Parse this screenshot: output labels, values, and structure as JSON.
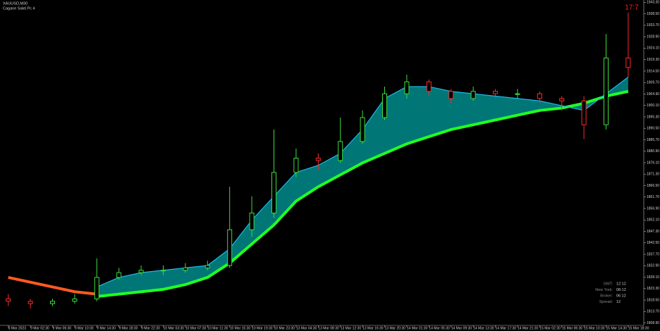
{
  "chart_data": {
    "type": "candlestick",
    "title": "XAUUSD,M30",
    "subtitle": "Cagane Sakti Pc 4",
    "clock": "17:7",
    "categories": [
      "8 Mar 2023",
      "9 Mar 02:30",
      "9 Mar 06:30",
      "9 Mar 10:30",
      "9 Mar 14:30",
      "9 Mar 18:30",
      "9 Mar 22:30",
      "10 Mar 03:30",
      "10 Mar 07:30",
      "10 Mar 11:30",
      "10 Mar 15:30",
      "10 Mar 19:30",
      "10 Mar 23:30",
      "13 Mar 04:30",
      "13 Mar 08:30",
      "13 Mar 12:30",
      "13 Mar 16:30",
      "13 Mar 20:30",
      "14 Mar 01:30",
      "14 Mar 05:30",
      "14 Mar 09:30",
      "14 Mar 13:30",
      "14 Mar 17:30",
      "14 Mar 21:30",
      "15 Mar 02:30",
      "15 Mar 06:30",
      "15 Mar 10:30",
      "15 Mar 14:30",
      "15 Mar 18:30"
    ],
    "open": [
      1819,
      1818,
      1817,
      1818,
      1819,
      1828,
      1830,
      1831,
      1831,
      1832,
      1833,
      1848,
      1855,
      1872,
      1878,
      1877,
      1885,
      1895,
      1905,
      1910,
      1906,
      1903,
      1906,
      1905,
      1905,
      1903,
      1902,
      1892,
      1920
    ],
    "high": [
      1821,
      1819,
      1819,
      1821,
      1836,
      1832,
      1833,
      1833,
      1834,
      1835,
      1866,
      1862,
      1890,
      1882,
      1880,
      1895,
      1898,
      1908,
      1913,
      1911,
      1907,
      1908,
      1907,
      1907,
      1906,
      1904,
      1904,
      1930,
      1939
    ],
    "low": [
      1816,
      1815,
      1816,
      1817,
      1818,
      1827,
      1829,
      1829,
      1830,
      1831,
      1832,
      1845,
      1853,
      1870,
      1873,
      1876,
      1884,
      1894,
      1903,
      1904,
      1901,
      1902,
      1903,
      1903,
      1901,
      1898,
      1886,
      1890,
      1912
    ],
    "close": [
      1818,
      1817,
      1818,
      1819,
      1828,
      1830,
      1831,
      1831,
      1832,
      1833,
      1848,
      1855,
      1872,
      1878,
      1877,
      1885,
      1895,
      1905,
      1910,
      1906,
      1903,
      1906,
      1905,
      1905,
      1903,
      1902,
      1892,
      1920,
      1916
    ],
    "up_color": "#3ddc3d",
    "down_color": "#ff2a2a",
    "fill_color": "#008b8b",
    "overlays": [
      {
        "color": "#22ff22",
        "values": [
          null,
          null,
          null,
          null,
          1820,
          1821,
          1822,
          1823,
          1825,
          1828,
          1834,
          1842,
          1850,
          1860,
          1866,
          1871,
          1876,
          1880,
          1884,
          1887,
          1890,
          1892,
          1894,
          1896,
          1898,
          1899,
          1901,
          1904,
          1906
        ]
      },
      {
        "color": "#1fb8e8",
        "values": [
          null,
          null,
          null,
          null,
          1824,
          1828,
          1830,
          1831,
          1832,
          1833,
          1840,
          1852,
          1862,
          1872,
          1875,
          1880,
          1890,
          1903,
          1908,
          1908,
          1906,
          1905,
          1904,
          1903,
          1902,
          1900,
          1898,
          1905,
          1912
        ]
      },
      {
        "color": "#ff5a1f",
        "values": [
          1828,
          1826,
          1824,
          1822,
          1821,
          null,
          null,
          null,
          null,
          null,
          null,
          null,
          null,
          null,
          null,
          null,
          null,
          null,
          null,
          null,
          null,
          null,
          null,
          null,
          null,
          null,
          null,
          null,
          null
        ]
      }
    ],
    "ylim": [
      1807.9,
      1944.3
    ],
    "yticks": [
      {
        "value": 1943.3,
        "label": "1943.30"
      },
      {
        "value": 1938.5,
        "label": "1938.50"
      },
      {
        "value": 1933.7,
        "label": "1933.70"
      },
      {
        "value": 1928.9,
        "label": "1928.90"
      },
      {
        "value": 1924.1,
        "label": "1924.10"
      },
      {
        "value": 1919.3,
        "label": "1919.30"
      },
      {
        "value": 1914.5,
        "label": "1914.50"
      },
      {
        "value": 1909.7,
        "label": "1909.70"
      },
      {
        "value": 1904.9,
        "label": "1904.90"
      },
      {
        "value": 1900.1,
        "label": "1900.10"
      },
      {
        "value": 1895.3,
        "label": "1895.30"
      },
      {
        "value": 1890.5,
        "label": "1890.50"
      },
      {
        "value": 1885.7,
        "label": "1885.70"
      },
      {
        "value": 1880.9,
        "label": "1880.90"
      },
      {
        "value": 1876.1,
        "label": "1876.10"
      },
      {
        "value": 1871.3,
        "label": "1871.30"
      },
      {
        "value": 1866.5,
        "label": "1866.50"
      },
      {
        "value": 1861.7,
        "label": "1861.70"
      },
      {
        "value": 1856.9,
        "label": "1856.90"
      },
      {
        "value": 1852.1,
        "label": "1852.10"
      },
      {
        "value": 1847.3,
        "label": "1847.30"
      },
      {
        "value": 1842.5,
        "label": "1842.50"
      },
      {
        "value": 1837.7,
        "label": "1837.70"
      },
      {
        "value": 1832.9,
        "label": "1832.90"
      },
      {
        "value": 1828.1,
        "label": "1828.10"
      },
      {
        "value": 1823.3,
        "label": "1823.30"
      },
      {
        "value": 1818.5,
        "label": "1818.50"
      },
      {
        "value": 1813.7,
        "label": "1813.70"
      },
      {
        "value": 1808.9,
        "label": "1808.90"
      }
    ],
    "info": [
      [
        "GMT:",
        "12:12"
      ],
      [
        "New York:",
        "08:12"
      ],
      [
        "Broker:",
        "06:12"
      ],
      [
        "Spread:",
        "12"
      ]
    ]
  }
}
